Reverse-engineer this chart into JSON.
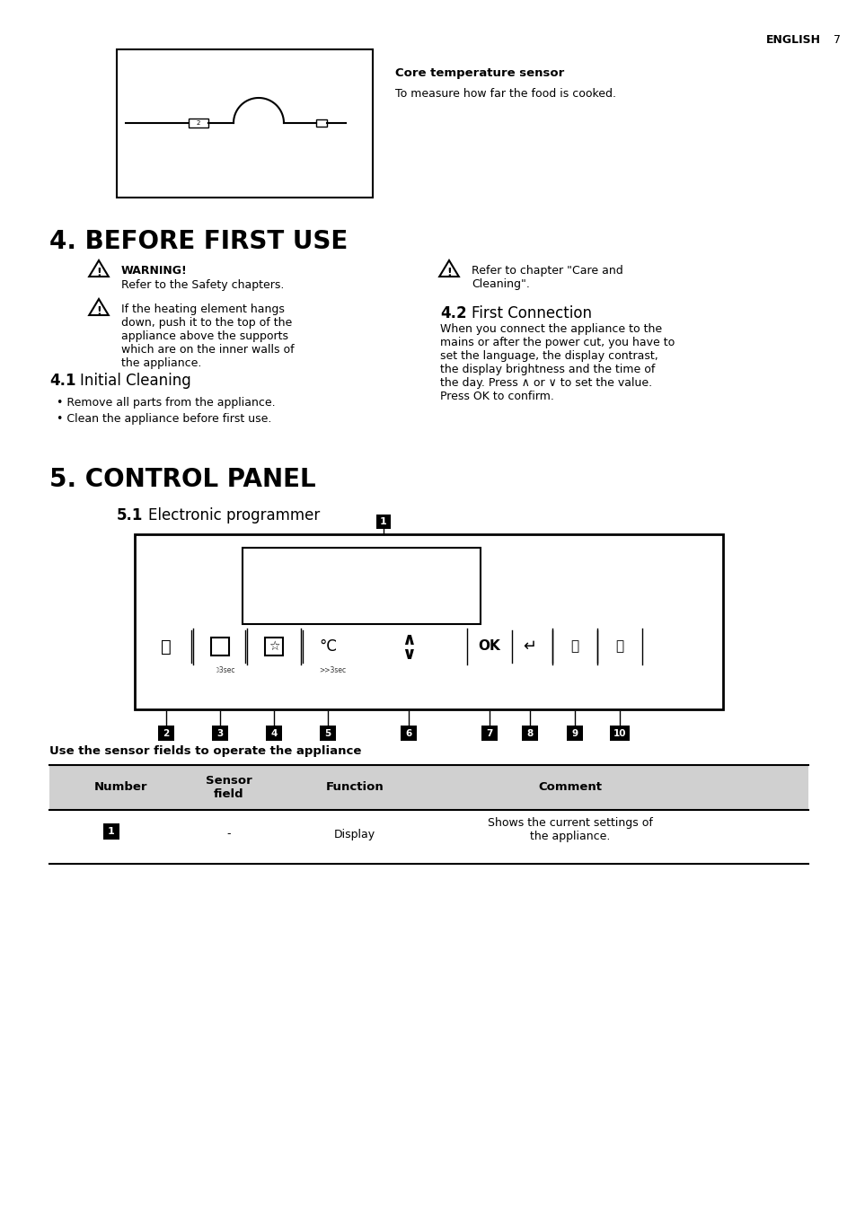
{
  "page_header_text": "ENGLISH",
  "page_number": "7",
  "bg_color": "#ffffff",
  "text_color": "#000000",
  "gray_bg": "#e8e8e8",
  "section4_title": "4. BEFORE FIRST USE",
  "section5_title": "5. CONTROL PANEL",
  "subsection51": "5.1 Electronic programmer",
  "subsection41": "4.1 Initial Cleaning",
  "subsection42": "4.2 First Connection",
  "warning_bold": "WARNING!",
  "warning_text": "Refer to the Safety chapters.",
  "warning2_text": "If the heating element hangs\ndown, push it to the top of the\nappliance above the supports\nwhich are on the inner walls of\nthe appliance.",
  "refer_text": "Refer to chapter \"Care and\nCleaning\".",
  "sensor_title": "Core temperature sensor",
  "sensor_desc": "To measure how far the food is cooked.",
  "cleaning_bullet1": "Remove all parts from the appliance.",
  "cleaning_bullet2": "Clean the appliance before first use.",
  "connection_text": "When you connect the appliance to the\nmains or after the power cut, you have to\nset the language, the display contrast,\nthe display brightness and the time of\nthe day. Press ∧ or ∨ to set the value.\nPress OK to confirm.",
  "table_title": "Use the sensor fields to operate the appliance",
  "table_headers": [
    "Number",
    "Sensor\nfield",
    "Function",
    "Comment"
  ],
  "table_row1_num": "1",
  "table_row1_sensor": "-",
  "table_row1_func": "Display",
  "table_row1_comment": "Shows the current settings of\nthe appliance."
}
